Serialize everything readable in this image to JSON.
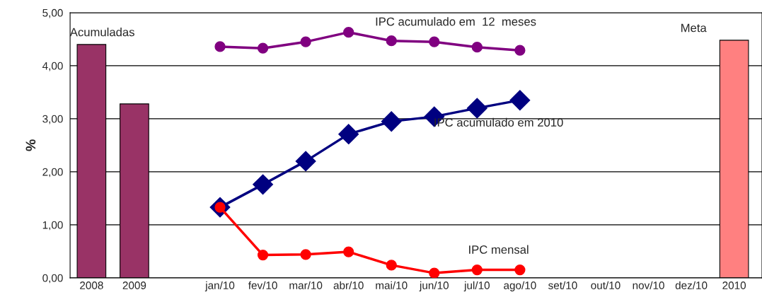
{
  "chart_data": {
    "type": "bar",
    "ylabel": "%",
    "categories": [
      "2008",
      "2009",
      null,
      "jan/10",
      "fev/10",
      "mar/10",
      "abr/10",
      "mai/10",
      "jun/10",
      "jul/10",
      "ago/10",
      "set/10",
      "out/10",
      "nov/10",
      "dez/10",
      "2010"
    ],
    "series": [
      {
        "colors": [
          "#993366",
          "#993366",
          null,
          null,
          null,
          null,
          null,
          null,
          null,
          null,
          null,
          null,
          null,
          null,
          null,
          "#ff8080"
        ],
        "values": [
          4.4,
          3.28,
          null,
          null,
          null,
          null,
          null,
          null,
          null,
          null,
          null,
          null,
          null,
          null,
          null,
          4.48
        ]
      },
      {
        "type": "line",
        "name": "IPC acumulado em  12  meses",
        "color": "#800080",
        "marker": "circle",
        "values": [
          null,
          null,
          null,
          4.36,
          4.33,
          4.45,
          4.63,
          4.47,
          4.45,
          4.35,
          4.29,
          null,
          null,
          null,
          null,
          null
        ]
      },
      {
        "type": "line",
        "name": "IPC acumulado em 2010",
        "color": "#000080",
        "marker": "diamond",
        "values": [
          null,
          null,
          null,
          1.33,
          1.76,
          2.2,
          2.71,
          2.95,
          3.04,
          3.2,
          3.35,
          null,
          null,
          null,
          null,
          null
        ]
      },
      {
        "type": "line",
        "name": "IPC mensal",
        "color": "#ff0000",
        "marker": "circle",
        "values": [
          null,
          null,
          null,
          1.33,
          0.43,
          0.44,
          0.49,
          0.24,
          0.09,
          0.15,
          0.15,
          null,
          null,
          null,
          null,
          null
        ]
      }
    ],
    "annotations": [
      {
        "text": "Acumuladas",
        "x": "2008",
        "y": 4.4
      },
      {
        "text": "Meta",
        "x": "2010",
        "y": 4.48
      }
    ],
    "ylim": [
      0,
      5
    ],
    "yticks": [
      {
        "value": 0,
        "label": "0,00"
      },
      {
        "value": 1,
        "label": "1,00"
      },
      {
        "value": 2,
        "label": "2,00"
      },
      {
        "value": 3,
        "label": "3,00"
      },
      {
        "value": 4,
        "label": "4,00"
      },
      {
        "value": 5,
        "label": "5,00"
      }
    ],
    "grid": "y",
    "legend": false
  }
}
